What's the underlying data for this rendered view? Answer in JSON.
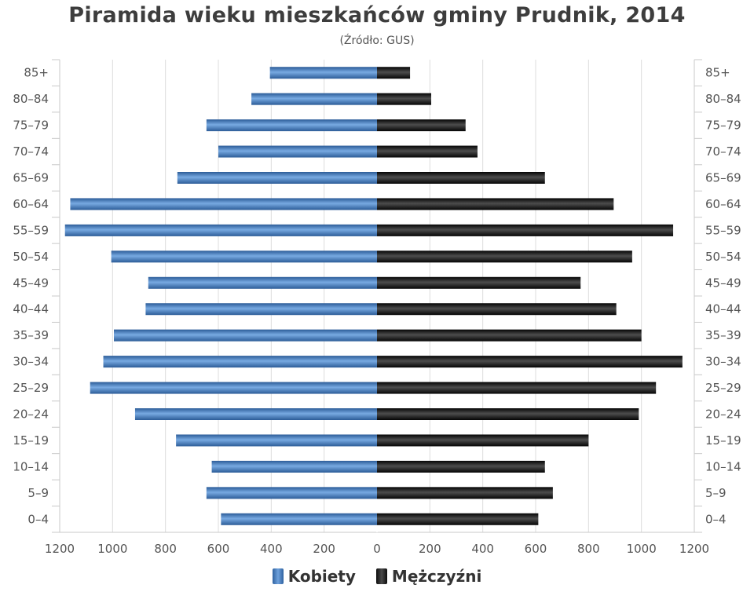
{
  "chart_data": {
    "type": "bar",
    "orientation": "horizontal-pyramid",
    "title": "Piramida wieku mieszkańców gminy Prudnik, 2014",
    "subtitle": "(Źródło: GUS)",
    "categories": [
      "85+",
      "80–84",
      "75–79",
      "70–74",
      "65–69",
      "60–64",
      "55–59",
      "50–54",
      "45–49",
      "40–44",
      "35–39",
      "30–34",
      "25–29",
      "20–24",
      "15–19",
      "10–14",
      "5–9",
      "0–4"
    ],
    "x_ticks": [
      "1200",
      "1000",
      "800",
      "600",
      "400",
      "200",
      "0",
      "200",
      "400",
      "600",
      "800",
      "1000",
      "1200"
    ],
    "xlim": [
      -1200,
      1200
    ],
    "grid": true,
    "legend_position": "bottom-center",
    "series": [
      {
        "name": "Kobiety",
        "side": "left",
        "color": "#3b72b8",
        "values": [
          405,
          475,
          645,
          600,
          755,
          1160,
          1180,
          1005,
          865,
          875,
          995,
          1035,
          1085,
          915,
          760,
          625,
          645,
          590
        ]
      },
      {
        "name": "Mężczyźni",
        "side": "right",
        "color": "#1a1a1a",
        "values": [
          125,
          205,
          335,
          380,
          635,
          895,
          1120,
          965,
          770,
          905,
          1000,
          1155,
          1055,
          990,
          800,
          635,
          665,
          610
        ]
      }
    ]
  }
}
